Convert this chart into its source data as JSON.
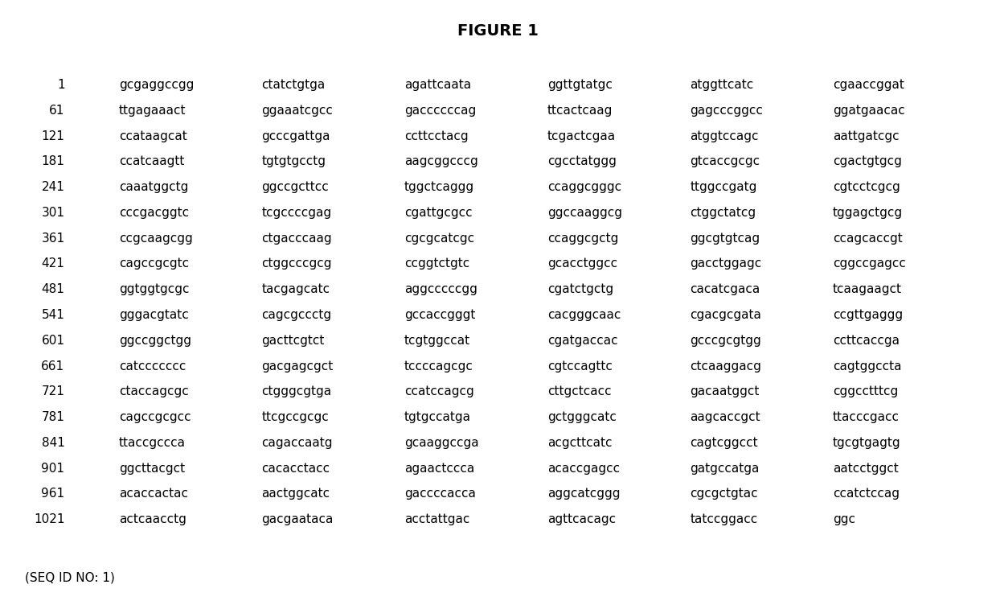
{
  "title": "FIGURE 1",
  "title_fontsize": 14,
  "title_bold": true,
  "seq_label": "(SEQ ID NO: 1)",
  "font_family": "Courier New",
  "font_size": 11,
  "background_color": "#ffffff",
  "text_color": "#000000",
  "rows": [
    {
      "num": "1",
      "seqs": [
        "gcgaggccgg",
        "ctatctgtga",
        "agattcaata",
        "ggttgtatgc",
        "atggttcatc",
        "cgaaccggat"
      ]
    },
    {
      "num": "61",
      "seqs": [
        "ttgagaaact",
        "ggaaatcgcc",
        "gaccccccag",
        "ttcactcaag",
        "gagcccggcc",
        "ggatgaacac"
      ]
    },
    {
      "num": "121",
      "seqs": [
        "ccataagcat",
        "gcccgattga",
        "ccttcctacg",
        "tcgactcgaa",
        "atggtccagc",
        "aattgatcgc"
      ]
    },
    {
      "num": "181",
      "seqs": [
        "ccatcaagtt",
        "tgtgtgcctg",
        "aagcggcccg",
        "cgcctatggg",
        "gtcaccgcgc",
        "cgactgtgcg"
      ]
    },
    {
      "num": "241",
      "seqs": [
        "caaatggctg",
        "ggccgcttcc",
        "tggctcaggg",
        "ccaggcgggc",
        "ttggccgatg",
        "cgtcctcgcg"
      ]
    },
    {
      "num": "301",
      "seqs": [
        "cccgacggtc",
        "tcgccccgag",
        "cgattgcgcc",
        "ggccaaggcg",
        "ctggctatcg",
        "tggagctgcg"
      ]
    },
    {
      "num": "361",
      "seqs": [
        "ccgcaagcgg",
        "ctgacccaag",
        "cgcgcatcgc",
        "ccaggcgctg",
        "ggcgtgtcag",
        "ccagcaccgt"
      ]
    },
    {
      "num": "421",
      "seqs": [
        "cagccgcgtc",
        "ctggcccgcg",
        "ccggtctgtc",
        "gcacctggcc",
        "gacctggagc",
        "cggccgagcc"
      ]
    },
    {
      "num": "481",
      "seqs": [
        "ggtggtgcgc",
        "tacgagcatc",
        "aggcccccgg",
        "cgatctgctg",
        "cacatcgaca",
        "tcaagaagct"
      ]
    },
    {
      "num": "541",
      "seqs": [
        "gggacgtatc",
        "cagcgccctg",
        "gccaccgggt",
        "cacgggcaac",
        "cgacgcgata",
        "ccgttgaggg"
      ]
    },
    {
      "num": "601",
      "seqs": [
        "ggccggctgg",
        "gacttcgtct",
        "tcgtggccat",
        "cgatgaccac",
        "gcccgcgtgg",
        "ccttcaccga"
      ]
    },
    {
      "num": "661",
      "seqs": [
        "catccccccc",
        "gacgagcgct",
        "tccccagcgc",
        "cgtccagttc",
        "ctcaaggacg",
        "cagtggccta"
      ]
    },
    {
      "num": "721",
      "seqs": [
        "ctaccagcgc",
        "ctgggcgtga",
        "ccatccagcg",
        "cttgctcacc",
        "gacaatggct",
        "cggcctttcg"
      ]
    },
    {
      "num": "781",
      "seqs": [
        "cagccgcgcc",
        "ttcgccgcgc",
        "tgtgccatga",
        "gctgggcatc",
        "aagcaccgct",
        "ttacccgacc"
      ]
    },
    {
      "num": "841",
      "seqs": [
        "ttaccgccca",
        "cagaccaatg",
        "gcaaggccga",
        "acgcttcatc",
        "cagtcggcct",
        "tgcgtgagtg"
      ]
    },
    {
      "num": "901",
      "seqs": [
        "ggcttacgct",
        "cacacctacc",
        "agaactccca",
        "acaccgagcc",
        "gatgccatga",
        "aatcctggct"
      ]
    },
    {
      "num": "961",
      "seqs": [
        "acaccactac",
        "aactggcatc",
        "gaccccacca",
        "aggcatcggg",
        "cgcgctgtac",
        "ccatctccag"
      ]
    },
    {
      "num": "1021",
      "seqs": [
        "actcaacctg",
        "gacgaataca",
        "acctattgac",
        "agttcacagc",
        "tatccggacc",
        "ggc"
      ]
    }
  ]
}
